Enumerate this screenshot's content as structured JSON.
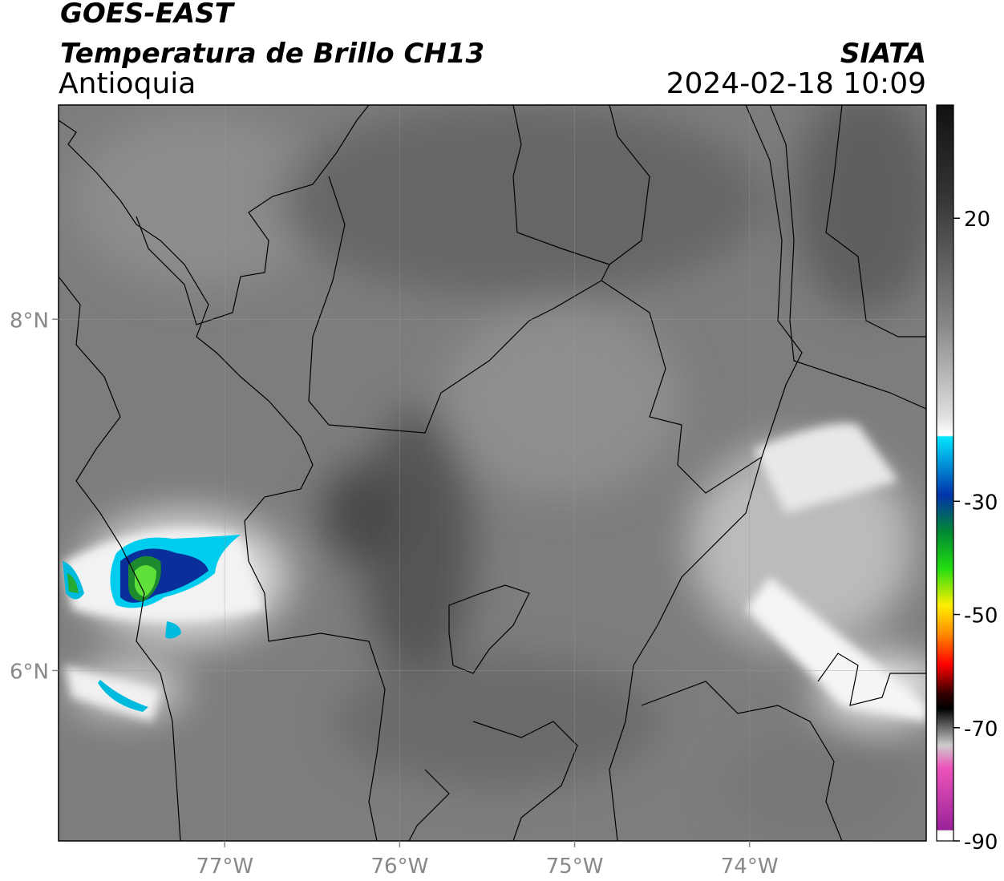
{
  "header": {
    "satellite": "GOES-EAST",
    "product": "Temperatura de Brillo CH13",
    "region": "Antioquia",
    "source": "SIATA",
    "datetime": "2024-02-18 10:09"
  },
  "chart_data": {
    "type": "map",
    "xlim": [
      -77.95,
      -72.99
    ],
    "ylim": [
      5.03,
      9.22
    ],
    "xticks": [
      {
        "value": -77,
        "label": "77°W"
      },
      {
        "value": -76,
        "label": "76°W"
      },
      {
        "value": -75,
        "label": "75°W"
      },
      {
        "value": -74,
        "label": "74°W"
      }
    ],
    "yticks": [
      {
        "value": 6,
        "label": "6°N"
      },
      {
        "value": 8,
        "label": "8°N"
      }
    ],
    "grid": true,
    "colorbar": {
      "lim": [
        -90,
        40
      ],
      "ticks": [
        20,
        -30,
        -50,
        -70,
        -90
      ]
    }
  }
}
